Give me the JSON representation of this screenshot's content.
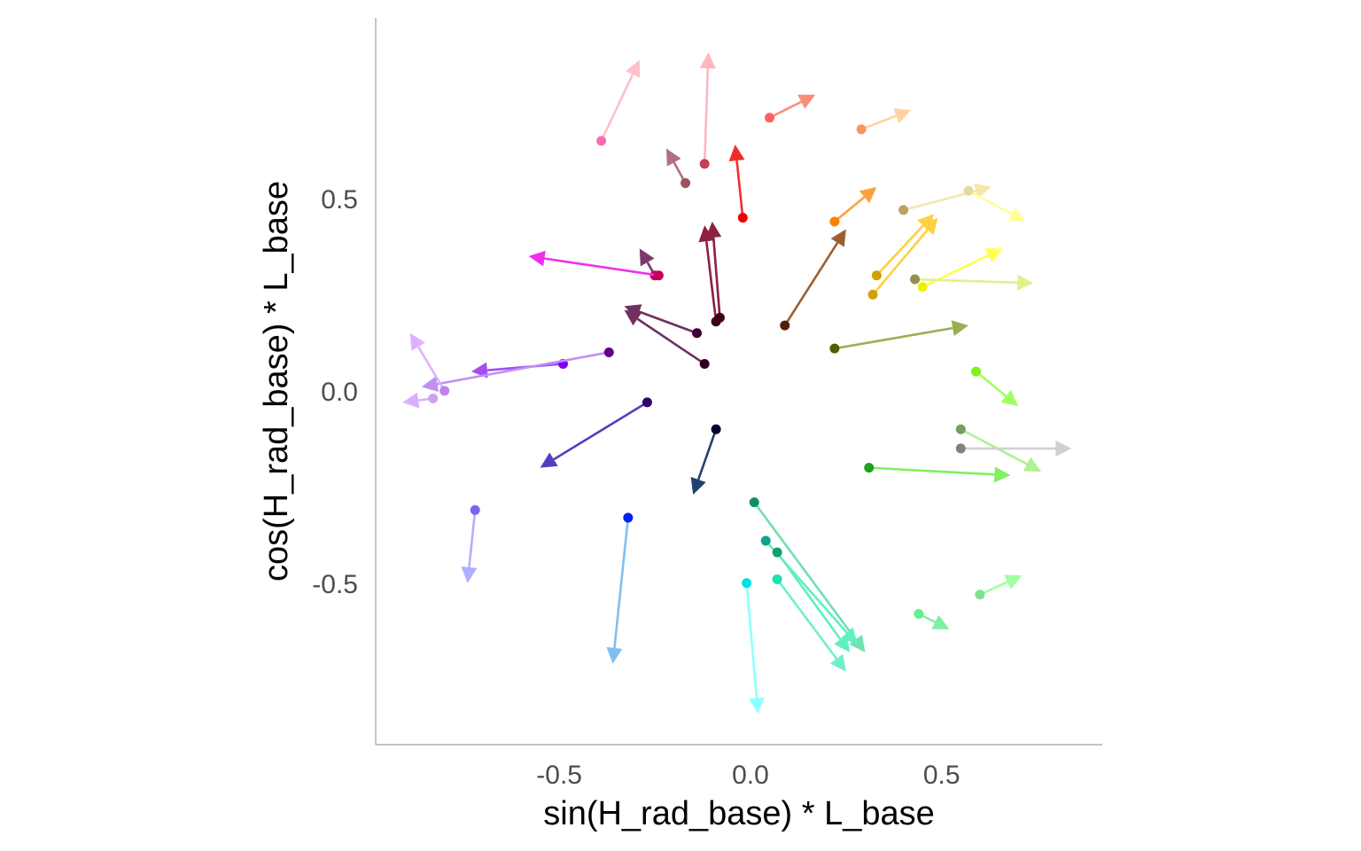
{
  "chart_data": {
    "type": "scatter",
    "title": "",
    "xlabel": "sin(H_rad_base) * L_base",
    "ylabel": "cos(H_rad_base) * L_base",
    "xlim": [
      -0.98,
      0.92
    ],
    "ylim": [
      -0.92,
      0.97
    ],
    "xticks": [
      -0.5,
      0.0,
      0.5
    ],
    "yticks": [
      -0.5,
      0.0,
      0.5
    ],
    "xtick_labels": [
      "-0.5",
      "0.0",
      "0.5"
    ],
    "ytick_labels": [
      "-0.5",
      "0.0",
      "0.5"
    ],
    "grid": false,
    "legend": "none",
    "arrows": [
      {
        "x0": -0.39,
        "y0": 0.65,
        "x1": -0.29,
        "y1": 0.86,
        "point_color": "#ff69b4",
        "arrow_color": "#ffc0cb"
      },
      {
        "x0": -0.12,
        "y0": 0.59,
        "x1": -0.11,
        "y1": 0.88,
        "point_color": "#c0405a",
        "arrow_color": "#ffb6c1"
      },
      {
        "x0": 0.05,
        "y0": 0.71,
        "x1": 0.17,
        "y1": 0.77,
        "point_color": "#ff6060",
        "arrow_color": "#fa8f78"
      },
      {
        "x0": 0.29,
        "y0": 0.68,
        "x1": 0.42,
        "y1": 0.73,
        "point_color": "#f9965a",
        "arrow_color": "#ffd2a0"
      },
      {
        "x0": -0.17,
        "y0": 0.54,
        "x1": -0.22,
        "y1": 0.63,
        "point_color": "#a05060",
        "arrow_color": "#b07080"
      },
      {
        "x0": -0.02,
        "y0": 0.45,
        "x1": -0.04,
        "y1": 0.64,
        "point_color": "#ee0000",
        "arrow_color": "#f22c2c"
      },
      {
        "x0": 0.22,
        "y0": 0.44,
        "x1": 0.33,
        "y1": 0.53,
        "point_color": "#ff8000",
        "arrow_color": "#ffa040"
      },
      {
        "x0": 0.4,
        "y0": 0.47,
        "x1": 0.63,
        "y1": 0.53,
        "point_color": "#c0a060",
        "arrow_color": "#f5e8a8"
      },
      {
        "x0": 0.57,
        "y0": 0.52,
        "x1": 0.72,
        "y1": 0.44,
        "point_color": "#e8d8a0",
        "arrow_color": "#ffff9a"
      },
      {
        "x0": -0.25,
        "y0": 0.3,
        "x1": -0.29,
        "y1": 0.37,
        "point_color": "#c0005a",
        "arrow_color": "#7a3a6a"
      },
      {
        "x0": -0.24,
        "y0": 0.3,
        "x1": -0.58,
        "y1": 0.35,
        "point_color": "#c0005a",
        "arrow_color": "#ee30ee"
      },
      {
        "x0": -0.09,
        "y0": 0.18,
        "x1": -0.12,
        "y1": 0.43,
        "point_color": "#400020",
        "arrow_color": "#8b2040"
      },
      {
        "x0": -0.08,
        "y0": 0.19,
        "x1": -0.1,
        "y1": 0.44,
        "point_color": "#400020",
        "arrow_color": "#8b2040"
      },
      {
        "x0": 0.09,
        "y0": 0.17,
        "x1": 0.25,
        "y1": 0.42,
        "point_color": "#502000",
        "arrow_color": "#9a6030"
      },
      {
        "x0": 0.33,
        "y0": 0.3,
        "x1": 0.48,
        "y1": 0.46,
        "point_color": "#d4a000",
        "arrow_color": "#ffd040"
      },
      {
        "x0": 0.32,
        "y0": 0.25,
        "x1": 0.49,
        "y1": 0.45,
        "point_color": "#d4a000",
        "arrow_color": "#ffd040"
      },
      {
        "x0": 0.45,
        "y0": 0.27,
        "x1": 0.66,
        "y1": 0.37,
        "point_color": "#f0f000",
        "arrow_color": "#ffff50"
      },
      {
        "x0": 0.43,
        "y0": 0.29,
        "x1": 0.74,
        "y1": 0.28,
        "point_color": "#909050",
        "arrow_color": "#e0f090"
      },
      {
        "x0": -0.14,
        "y0": 0.15,
        "x1": -0.33,
        "y1": 0.22,
        "point_color": "#400030",
        "arrow_color": "#703060"
      },
      {
        "x0": -0.12,
        "y0": 0.07,
        "x1": -0.33,
        "y1": 0.21,
        "point_color": "#300020",
        "arrow_color": "#703060"
      },
      {
        "x0": 0.22,
        "y0": 0.11,
        "x1": 0.57,
        "y1": 0.17,
        "point_color": "#506000",
        "arrow_color": "#98b050"
      },
      {
        "x0": -0.49,
        "y0": 0.07,
        "x1": -0.73,
        "y1": 0.05,
        "point_color": "#8000f0",
        "arrow_color": "#a050f0"
      },
      {
        "x0": -0.37,
        "y0": 0.1,
        "x1": -0.86,
        "y1": 0.01,
        "point_color": "#600090",
        "arrow_color": "#c090f0"
      },
      {
        "x0": -0.8,
        "y0": 0.0,
        "x1": -0.89,
        "y1": 0.15,
        "point_color": "#c080f0",
        "arrow_color": "#e0b0ff"
      },
      {
        "x0": -0.83,
        "y0": -0.02,
        "x1": -0.91,
        "y1": -0.03,
        "point_color": "#d0a0f0",
        "arrow_color": "#d8b0ff"
      },
      {
        "x0": 0.59,
        "y0": 0.05,
        "x1": 0.7,
        "y1": -0.04,
        "point_color": "#80f020",
        "arrow_color": "#a0ff60"
      },
      {
        "x0": -0.27,
        "y0": -0.03,
        "x1": -0.55,
        "y1": -0.2,
        "point_color": "#300070",
        "arrow_color": "#5040c0"
      },
      {
        "x0": -0.09,
        "y0": -0.1,
        "x1": -0.15,
        "y1": -0.27,
        "point_color": "#000030",
        "arrow_color": "#204070"
      },
      {
        "x0": 0.55,
        "y0": -0.1,
        "x1": 0.76,
        "y1": -0.21,
        "point_color": "#70a060",
        "arrow_color": "#b0f090"
      },
      {
        "x0": 0.55,
        "y0": -0.15,
        "x1": 0.84,
        "y1": -0.15,
        "point_color": "#808080",
        "arrow_color": "#d0d0d0"
      },
      {
        "x0": 0.31,
        "y0": -0.2,
        "x1": 0.68,
        "y1": -0.22,
        "point_color": "#20a020",
        "arrow_color": "#80f060"
      },
      {
        "x0": -0.72,
        "y0": -0.31,
        "x1": -0.74,
        "y1": -0.5,
        "point_color": "#8060f0",
        "arrow_color": "#b0b0ff"
      },
      {
        "x0": -0.32,
        "y0": -0.33,
        "x1": -0.36,
        "y1": -0.71,
        "point_color": "#0020f0",
        "arrow_color": "#80c0f0"
      },
      {
        "x0": 0.01,
        "y0": -0.29,
        "x1": 0.3,
        "y1": -0.68,
        "point_color": "#109060",
        "arrow_color": "#70e0b0"
      },
      {
        "x0": 0.04,
        "y0": -0.39,
        "x1": 0.28,
        "y1": -0.66,
        "point_color": "#10a090",
        "arrow_color": "#60f0c0"
      },
      {
        "x0": 0.07,
        "y0": -0.42,
        "x1": 0.26,
        "y1": -0.68,
        "point_color": "#10a070",
        "arrow_color": "#60f0c0"
      },
      {
        "x0": 0.07,
        "y0": -0.49,
        "x1": 0.25,
        "y1": -0.73,
        "point_color": "#20e0b0",
        "arrow_color": "#70f0d0"
      },
      {
        "x0": -0.01,
        "y0": -0.5,
        "x1": 0.02,
        "y1": -0.84,
        "point_color": "#00e0e0",
        "arrow_color": "#90ffff"
      },
      {
        "x0": 0.44,
        "y0": -0.58,
        "x1": 0.52,
        "y1": -0.62,
        "point_color": "#60f090",
        "arrow_color": "#80f0a0"
      },
      {
        "x0": 0.6,
        "y0": -0.53,
        "x1": 0.71,
        "y1": -0.48,
        "point_color": "#80e090",
        "arrow_color": "#a0ffa0"
      }
    ]
  }
}
